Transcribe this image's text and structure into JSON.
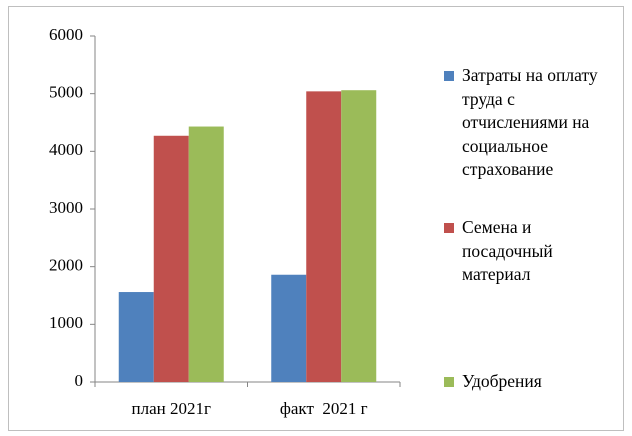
{
  "chart_data": {
    "type": "bar",
    "categories": [
      "план 2021г",
      "факт  2021 г"
    ],
    "series": [
      {
        "name": "Затраты на оплату труда с отчислениями на социальное страхование",
        "color": "#4f81bd",
        "values": [
          1560,
          1860
        ]
      },
      {
        "name": "Семена и посадочный материал",
        "color": "#c0504d",
        "values": [
          4270,
          5040
        ]
      },
      {
        "name": "Удобрения",
        "color": "#9bbb59",
        "values": [
          4430,
          5060
        ]
      }
    ],
    "ylim": [
      0,
      6000
    ],
    "yticks": [
      0,
      1000,
      2000,
      3000,
      4000,
      5000,
      6000
    ],
    "legend": "right"
  }
}
